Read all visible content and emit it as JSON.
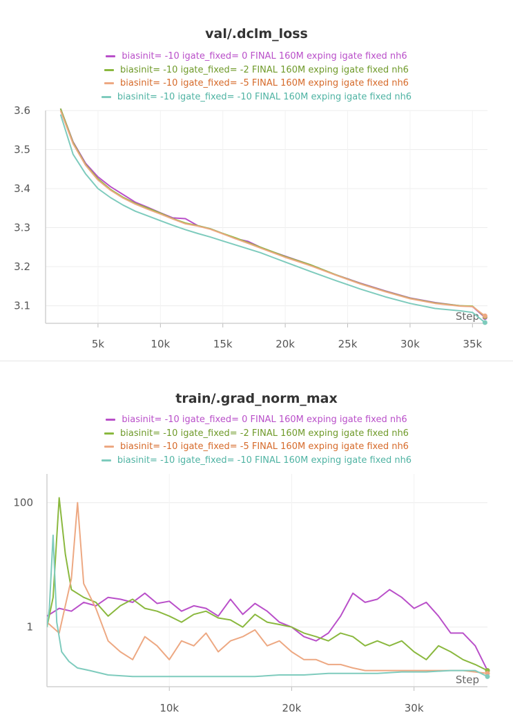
{
  "chart_data": [
    {
      "type": "line",
      "title": "val/.dclm_loss",
      "xlabel": "Step",
      "ylabel": "",
      "xlim": [
        800,
        36200
      ],
      "ylim": [
        3.055,
        3.6
      ],
      "xticks": [
        5000,
        10000,
        15000,
        20000,
        25000,
        30000,
        35000
      ],
      "xtick_labels": [
        "5k",
        "10k",
        "15k",
        "20k",
        "25k",
        "30k",
        "35k"
      ],
      "yticks": [
        3.1,
        3.2,
        3.3,
        3.4,
        3.5,
        3.6
      ],
      "ytick_labels": [
        "3.1",
        "3.2",
        "3.3",
        "3.4",
        "3.5",
        "3.6"
      ],
      "log_y": false,
      "grid": true,
      "legend_position": "top",
      "series": [
        {
          "name": "biasinit= -10 igate_fixed= 0 FINAL 160M exping igate fixed nh6",
          "color": "#b94fc9",
          "x": [
            2000,
            3000,
            4000,
            5000,
            6000,
            7000,
            8000,
            9000,
            10000,
            11000,
            12000,
            13000,
            14000,
            15000,
            16000,
            17000,
            18000,
            19000,
            20000,
            22000,
            24000,
            26000,
            28000,
            30000,
            32000,
            34000,
            35000,
            36000
          ],
          "y": [
            3.605,
            3.52,
            3.465,
            3.43,
            3.405,
            3.385,
            3.365,
            3.352,
            3.338,
            3.325,
            3.323,
            3.305,
            3.297,
            3.285,
            3.272,
            3.265,
            3.25,
            3.238,
            3.227,
            3.205,
            3.18,
            3.158,
            3.138,
            3.12,
            3.108,
            3.1,
            3.098,
            3.07
          ]
        },
        {
          "name": "biasinit= -10 igate_fixed= -2 FINAL 160M exping igate fixed nh6",
          "color": "#8ab83e",
          "x": [
            2000,
            3000,
            4000,
            5000,
            6000,
            7000,
            8000,
            9000,
            10000,
            11000,
            12000,
            13000,
            14000,
            15000,
            16000,
            17000,
            18000,
            19000,
            20000,
            22000,
            24000,
            26000,
            28000,
            30000,
            32000,
            34000,
            35000,
            36000
          ],
          "y": [
            3.605,
            3.518,
            3.462,
            3.425,
            3.398,
            3.378,
            3.362,
            3.35,
            3.337,
            3.323,
            3.312,
            3.305,
            3.297,
            3.285,
            3.274,
            3.262,
            3.25,
            3.238,
            3.226,
            3.205,
            3.18,
            3.157,
            3.137,
            3.119,
            3.107,
            3.1,
            3.099,
            3.072
          ]
        },
        {
          "name": "biasinit= -10 igate_fixed= -5 FINAL 160M exping igate fixed nh6",
          "color": "#eda882",
          "x": [
            2000,
            3000,
            4000,
            5000,
            6000,
            7000,
            8000,
            9000,
            10000,
            11000,
            12000,
            13000,
            14000,
            15000,
            16000,
            17000,
            18000,
            19000,
            20000,
            22000,
            24000,
            26000,
            28000,
            30000,
            32000,
            34000,
            35000,
            36000
          ],
          "y": [
            3.6,
            3.515,
            3.46,
            3.422,
            3.396,
            3.376,
            3.36,
            3.347,
            3.335,
            3.322,
            3.31,
            3.304,
            3.296,
            3.284,
            3.272,
            3.26,
            3.248,
            3.236,
            3.224,
            3.203,
            3.179,
            3.156,
            3.136,
            3.118,
            3.106,
            3.099,
            3.098,
            3.074
          ]
        },
        {
          "name": "biasinit= -10 igate_fixed= -10 FINAL 160M exping igate fixed nh6",
          "color": "#7ecbbd",
          "x": [
            2000,
            3000,
            4000,
            5000,
            6000,
            7000,
            8000,
            9000,
            10000,
            11000,
            12000,
            13000,
            14000,
            15000,
            16000,
            17000,
            18000,
            19000,
            20000,
            22000,
            24000,
            26000,
            28000,
            30000,
            32000,
            34000,
            35000,
            36000
          ],
          "y": [
            3.59,
            3.488,
            3.438,
            3.4,
            3.377,
            3.358,
            3.342,
            3.33,
            3.318,
            3.306,
            3.295,
            3.285,
            3.276,
            3.266,
            3.256,
            3.246,
            3.236,
            3.224,
            3.212,
            3.188,
            3.165,
            3.143,
            3.123,
            3.106,
            3.093,
            3.087,
            3.083,
            3.057
          ]
        }
      ]
    },
    {
      "type": "line",
      "title": "train/.grad_norm_max",
      "xlabel": "Step",
      "ylabel": "",
      "xlim": [
        0,
        36000
      ],
      "ylim": [
        0.11,
        290
      ],
      "log_y": true,
      "xticks": [
        10000,
        20000,
        30000
      ],
      "xtick_labels": [
        "10k",
        "20k",
        "30k"
      ],
      "yticks": [
        1,
        100
      ],
      "ytick_labels": [
        "1",
        "100"
      ],
      "grid": true,
      "legend_position": "top",
      "series": [
        {
          "name": "biasinit= -10 igate_fixed= 0 FINAL 160M exping igate fixed nh6",
          "color": "#b94fc9",
          "x": [
            0,
            1000,
            2000,
            3000,
            4000,
            5000,
            6000,
            7000,
            8000,
            9000,
            10000,
            11000,
            12000,
            13000,
            14000,
            15000,
            16000,
            17000,
            18000,
            19000,
            20000,
            21000,
            22000,
            23000,
            24000,
            25000,
            26000,
            27000,
            28000,
            29000,
            30000,
            31000,
            32000,
            33000,
            34000,
            35000,
            36000
          ],
          "y": [
            1.5,
            2.0,
            1.8,
            2.5,
            2.2,
            3.0,
            2.8,
            2.5,
            3.5,
            2.4,
            2.6,
            1.8,
            2.2,
            2.0,
            1.5,
            2.8,
            1.6,
            2.4,
            1.8,
            1.2,
            1.0,
            0.7,
            0.6,
            0.8,
            1.5,
            3.5,
            2.5,
            2.8,
            4.0,
            3.0,
            2.0,
            2.5,
            1.5,
            0.8,
            0.8,
            0.5,
            0.2
          ]
        },
        {
          "name": "biasinit= -10 igate_fixed= -2 FINAL 160M exping igate fixed nh6",
          "color": "#8ab83e",
          "x": [
            0,
            500,
            1000,
            1500,
            2000,
            3000,
            4000,
            5000,
            6000,
            7000,
            8000,
            9000,
            10000,
            11000,
            12000,
            13000,
            14000,
            15000,
            16000,
            17000,
            18000,
            19000,
            20000,
            21000,
            22000,
            23000,
            24000,
            25000,
            26000,
            27000,
            28000,
            29000,
            30000,
            31000,
            32000,
            33000,
            34000,
            35000,
            36000
          ],
          "y": [
            1.0,
            3.0,
            120.0,
            15.0,
            4.0,
            3.0,
            2.5,
            1.5,
            2.2,
            2.8,
            2.0,
            1.8,
            1.5,
            1.2,
            1.6,
            1.8,
            1.4,
            1.3,
            1.0,
            1.6,
            1.2,
            1.1,
            1.0,
            0.8,
            0.7,
            0.6,
            0.8,
            0.7,
            0.5,
            0.6,
            0.5,
            0.6,
            0.4,
            0.3,
            0.5,
            0.4,
            0.3,
            0.25,
            0.2
          ]
        },
        {
          "name": "biasinit= -10 igate_fixed= -5 FINAL 160M exping igate fixed nh6",
          "color": "#eda882",
          "x": [
            0,
            1000,
            2000,
            2500,
            3000,
            4000,
            5000,
            6000,
            7000,
            8000,
            9000,
            10000,
            11000,
            12000,
            13000,
            14000,
            15000,
            16000,
            17000,
            18000,
            19000,
            20000,
            21000,
            22000,
            23000,
            24000,
            25000,
            26000,
            28000,
            30000,
            32000,
            34000,
            36000
          ],
          "y": [
            1.2,
            0.8,
            6.0,
            100.0,
            5.0,
            2.0,
            0.6,
            0.4,
            0.3,
            0.7,
            0.5,
            0.3,
            0.6,
            0.5,
            0.8,
            0.4,
            0.6,
            0.7,
            0.9,
            0.5,
            0.6,
            0.4,
            0.3,
            0.3,
            0.25,
            0.25,
            0.22,
            0.2,
            0.2,
            0.2,
            0.2,
            0.2,
            0.18
          ]
        },
        {
          "name": "biasinit= -10 igate_fixed= -10 FINAL 160M exping igate fixed nh6",
          "color": "#7ecbbd",
          "x": [
            0,
            200,
            500,
            800,
            1200,
            1800,
            2500,
            3500,
            5000,
            7000,
            9000,
            11000,
            13000,
            15000,
            17000,
            19000,
            21000,
            23000,
            25000,
            27000,
            29000,
            31000,
            33000,
            35000,
            36000
          ],
          "y": [
            1.0,
            2.0,
            30.0,
            1.2,
            0.4,
            0.28,
            0.22,
            0.2,
            0.17,
            0.16,
            0.16,
            0.16,
            0.16,
            0.16,
            0.16,
            0.17,
            0.17,
            0.18,
            0.18,
            0.18,
            0.19,
            0.19,
            0.2,
            0.2,
            0.16
          ]
        }
      ]
    }
  ]
}
